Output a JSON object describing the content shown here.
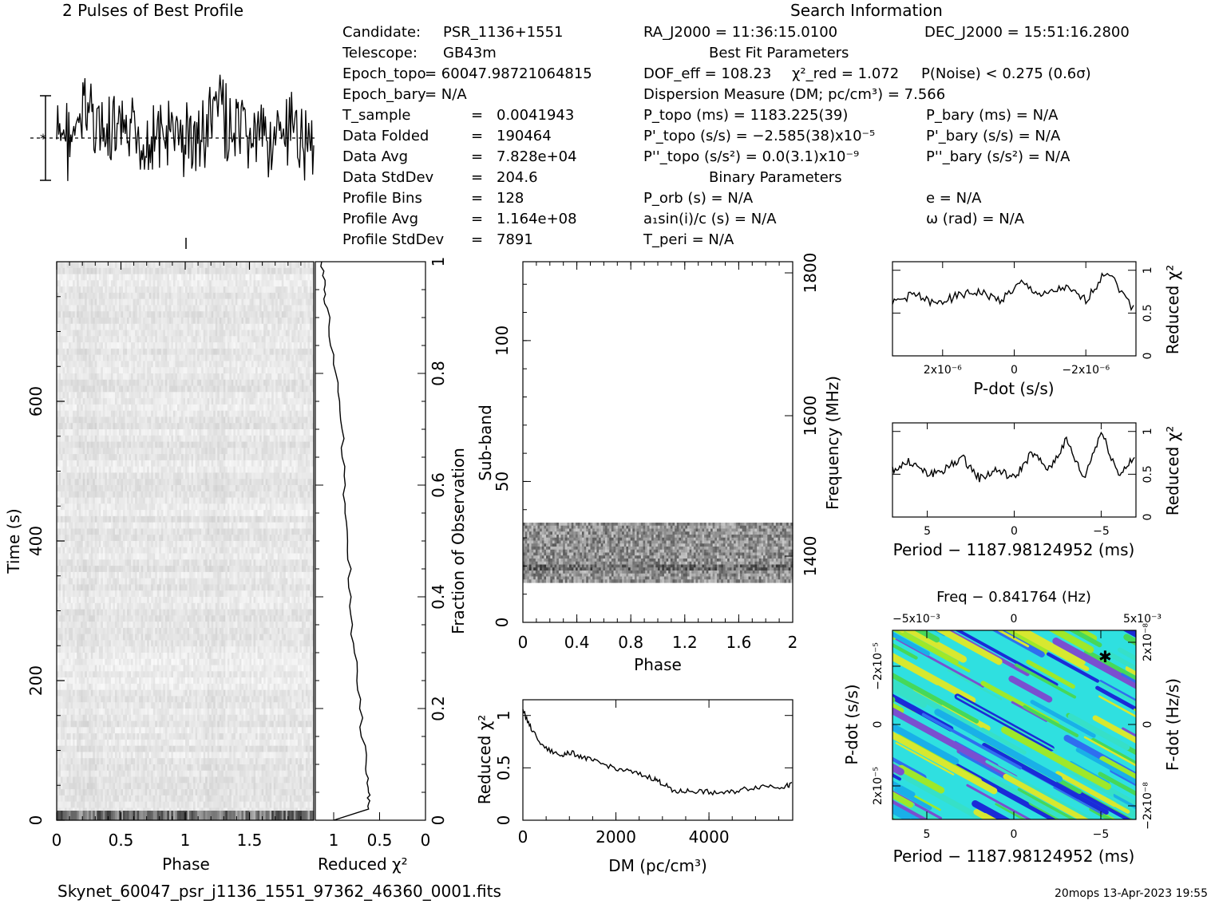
{
  "footer": {
    "filename": "Skynet_60047_psr_j1136_1551_97362_46360_0001.fits",
    "stamp": "20mops 13-Apr-2023 19:55"
  },
  "info": {
    "left_col": [
      {
        "label": "Candidate:",
        "value": "PSR_1136+1551"
      },
      {
        "label": "Telescope:",
        "value": "GB43m"
      },
      {
        "label": "Epoch_topo",
        "value": "= 60047.98721064815"
      },
      {
        "label": "Epoch_bary",
        "value": "= N/A"
      },
      {
        "label": "T_sample",
        "value": "0.0041943"
      },
      {
        "label": "Data Folded",
        "value": "190464"
      },
      {
        "label": "Data Avg",
        "value": "7.828e+04"
      },
      {
        "label": "Data StdDev",
        "value": "204.6"
      },
      {
        "label": "Profile Bins",
        "value": "128"
      },
      {
        "label": "Profile Avg",
        "value": "1.164e+08"
      },
      {
        "label": "Profile StdDev",
        "value": "7891"
      }
    ],
    "search_title": "Search Information",
    "best_fit_title": "Best Fit Parameters",
    "binary_title": "Binary Parameters",
    "ra": "RA_J2000 = 11:36:15.0100",
    "dec": "DEC_J2000 = 15:51:16.2800",
    "dof": "DOF_eff = 108.23",
    "chi2": "χ²_red = 1.072",
    "pnoise": "P(Noise) < 0.275   (0.6σ)",
    "dm": "Dispersion Measure (DM; pc/cm³) = 7.566",
    "p_topo": "P_topo (ms) =  1183.225(39)",
    "pd_topo": "P'_topo (s/s) = −2.585(38)x10⁻⁵",
    "pdd_topo": "P''_topo (s/s²) = 0.0(3.1)x10⁻⁹",
    "p_bary": "P_bary (ms) = N/A",
    "pd_bary": "P'_bary (s/s) = N/A",
    "pdd_bary": "P''_bary (s/s²) = N/A",
    "porb": "P_orb (s) = N/A",
    "a1": "a₁sin(i)/c (s) = N/A",
    "tperi": "T_peri = N/A",
    "ecc": "e = N/A",
    "omega": "ω (rad) = N/A"
  },
  "chart_data": [
    {
      "id": "pulse-profile",
      "type": "line",
      "title": "2 Pulses of Best Profile",
      "xlabel": "",
      "ylabel": "",
      "note": "noisy profile, two pulse periods",
      "grid": false
    },
    {
      "id": "time-phase",
      "type": "heatmap",
      "xlabel": "Phase",
      "ylabel": "Time (s)",
      "xlim": [
        0,
        2
      ],
      "ylim": [
        0,
        800
      ],
      "x_ticks": [
        "0",
        "0.5",
        "1",
        "1.5"
      ],
      "y_ticks": [
        "0",
        "200",
        "400",
        "600"
      ],
      "colormap": "greyscale"
    },
    {
      "id": "chi2-vs-fraction",
      "type": "line",
      "xlabel": "Reduced χ²",
      "ylabel": "Fraction of Observation",
      "xlim": [
        1.2,
        0
      ],
      "x_ticks": [
        "1",
        "0.5",
        "0"
      ],
      "y_ticks": [
        "0",
        "0.2",
        "0.4",
        "0.6",
        "0.8",
        "1"
      ],
      "x": [
        0.0,
        0.02,
        0.05,
        0.1,
        0.2,
        0.3,
        0.4,
        0.5,
        0.6,
        0.7,
        0.8,
        0.9,
        0.95,
        1.0
      ],
      "values": [
        1.0,
        0.62,
        0.63,
        0.66,
        0.72,
        0.78,
        0.82,
        0.85,
        0.88,
        0.92,
        0.98,
        1.05,
        1.12,
        1.14
      ]
    },
    {
      "id": "subband-phase",
      "type": "heatmap",
      "xlabel": "Phase",
      "ylabel": "Sub-band",
      "y2label": "Frequency (MHz)",
      "xlim": [
        0,
        2
      ],
      "ylim": [
        0,
        128
      ],
      "x_ticks": [
        "0",
        "0.4",
        "0.8",
        "1.2",
        "1.6",
        "2"
      ],
      "y_ticks": [
        "0",
        "50",
        "100"
      ],
      "y2_ticks": [
        "1400",
        "1600",
        "1800"
      ],
      "colormap": "greyscale"
    },
    {
      "id": "chi2-vs-dm",
      "type": "line",
      "xlabel": "DM (pc/cm³)",
      "ylabel": "Reduced χ²",
      "xlim": [
        0,
        5800
      ],
      "ylim": [
        0,
        1.15
      ],
      "x_ticks": [
        "0",
        "2000",
        "4000"
      ],
      "y_ticks": [
        "0",
        "0.5",
        "1"
      ],
      "x": [
        0,
        200,
        500,
        800,
        1000,
        1300,
        1600,
        2000,
        2400,
        2800,
        3000,
        3300,
        3600,
        4000,
        4400,
        4800,
        5200,
        5600,
        5800
      ],
      "values": [
        1.05,
        0.85,
        0.68,
        0.62,
        0.65,
        0.6,
        0.55,
        0.5,
        0.45,
        0.4,
        0.35,
        0.27,
        0.28,
        0.27,
        0.26,
        0.3,
        0.33,
        0.32,
        0.34
      ]
    },
    {
      "id": "chi2-vs-pdot",
      "type": "line",
      "xlabel": "P-dot (s/s)",
      "ylabel": "Reduced χ²",
      "xlim": [
        3.4e-06,
        -3.4e-06
      ],
      "ylim": [
        0,
        1.1
      ],
      "x_ticks": [
        "2x10⁻⁶",
        "0",
        "−2x10⁻⁶"
      ],
      "y_ticks": [
        "0",
        "0.5",
        "1"
      ],
      "x": [
        3.4e-06,
        2.8e-06,
        2.2e-06,
        1.6e-06,
        1e-06,
        4e-07,
        -2e-07,
        -8e-07,
        -1.4e-06,
        -2e-06,
        -2.6e-06,
        -3.4e-06
      ],
      "values": [
        0.62,
        0.72,
        0.6,
        0.7,
        0.75,
        0.65,
        0.85,
        0.7,
        0.8,
        0.65,
        1.0,
        0.5
      ]
    },
    {
      "id": "chi2-vs-period",
      "type": "line",
      "xlabel": "Period − 1187.98124952 (ms)",
      "ylabel": "Reduced χ²",
      "xlim": [
        7,
        -7
      ],
      "ylim": [
        0,
        1.1
      ],
      "x_ticks": [
        "5",
        "0",
        "−5"
      ],
      "y_ticks": [
        "0",
        "0.5",
        "1"
      ],
      "x": [
        7,
        6,
        5,
        4,
        3,
        2,
        1,
        0,
        -1,
        -2,
        -3,
        -4,
        -5,
        -6,
        -7
      ],
      "values": [
        0.55,
        0.65,
        0.5,
        0.55,
        0.7,
        0.45,
        0.55,
        0.45,
        0.75,
        0.55,
        0.9,
        0.45,
        1.0,
        0.5,
        0.7
      ]
    },
    {
      "id": "pp-dot-plane",
      "type": "heatmap",
      "title": "Freq − 0.841764 (Hz)",
      "xlabel": "Period − 1187.98124952 (ms)",
      "ylabel": "P-dot (s/s)",
      "y2label": "F-dot (Hz/s)",
      "x_ticks": [
        "5",
        "0",
        "−5"
      ],
      "x2_ticks": [
        "−5x10⁻³",
        "0",
        "5x10⁻³"
      ],
      "y_ticks": [
        "2x10⁻⁵",
        "0",
        "−2x10⁻⁵"
      ],
      "y2_ticks": [
        "−2x10⁻⁸",
        "0",
        "2x10⁻⁸"
      ],
      "colormap": "rainbow",
      "best_point_marker": true
    }
  ]
}
